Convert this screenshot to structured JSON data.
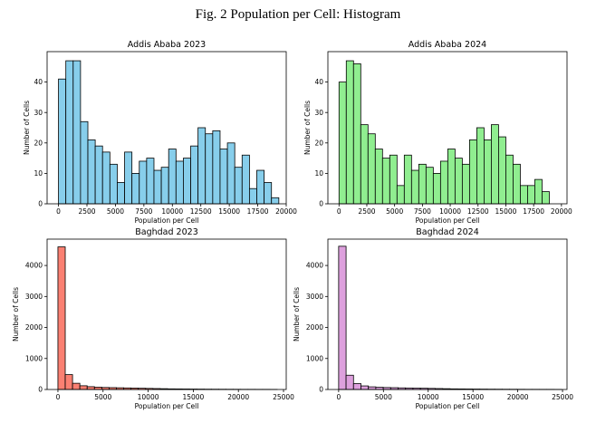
{
  "figure": {
    "title": "Fig. 2 Population per Cell: Histogram"
  },
  "chart_data": [
    {
      "type": "bar",
      "title": "Addis Ababa 2023",
      "xlabel": "Population per Cell",
      "ylabel": "Number of Cells",
      "color": "#87ceeb",
      "xlim": [
        -1000,
        20000
      ],
      "ylim": [
        0,
        50
      ],
      "xticks": [
        0,
        2500,
        5000,
        7500,
        10000,
        12500,
        15000,
        17500,
        20000
      ],
      "yticks": [
        0,
        10,
        20,
        30,
        40
      ],
      "bin_start": 0,
      "bin_width": 645,
      "values": [
        41,
        47,
        47,
        27,
        21,
        19,
        17,
        13,
        7,
        17,
        10,
        14,
        15,
        11,
        12,
        18,
        14,
        15,
        19,
        25,
        23,
        24,
        18,
        20,
        12,
        16,
        5,
        11,
        7,
        2
      ],
      "grid": false
    },
    {
      "type": "bar",
      "title": "Addis Ababa 2024",
      "xlabel": "Population per Cell",
      "ylabel": "Number of Cells",
      "color": "#90ee90",
      "xlim": [
        -1000,
        20500
      ],
      "ylim": [
        0,
        50
      ],
      "xticks": [
        0,
        2500,
        5000,
        7500,
        10000,
        12500,
        15000,
        17500,
        20000
      ],
      "yticks": [
        0,
        10,
        20,
        30,
        40
      ],
      "bin_start": 0,
      "bin_width": 652,
      "values": [
        40,
        47,
        46,
        26,
        23,
        18,
        15,
        16,
        6,
        16,
        11,
        13,
        12,
        10,
        14,
        18,
        15,
        13,
        21,
        25,
        21,
        26,
        22,
        16,
        13,
        6,
        6,
        8,
        4
      ],
      "grid": false
    },
    {
      "type": "bar",
      "title": "Baghdad 2023",
      "xlabel": "Population per Cell",
      "ylabel": "Number of Cells",
      "color": "#fa8072",
      "xlim": [
        -1200,
        25300
      ],
      "ylim": [
        0,
        4850
      ],
      "xticks": [
        0,
        5000,
        10000,
        15000,
        20000,
        25000
      ],
      "yticks": [
        0,
        1000,
        2000,
        3000,
        4000
      ],
      "bin_start": 0,
      "bin_width": 810,
      "values": [
        4600,
        480,
        200,
        120,
        90,
        75,
        65,
        60,
        55,
        50,
        45,
        40,
        35,
        30,
        25,
        20,
        18,
        16,
        14,
        12,
        10,
        9,
        8,
        7,
        6,
        5,
        5,
        4,
        4,
        3
      ],
      "grid": false
    },
    {
      "type": "bar",
      "title": "Baghdad 2024",
      "xlabel": "Population per Cell",
      "ylabel": "Number of Cells",
      "color": "#dda0dd",
      "xlim": [
        -1200,
        25500
      ],
      "ylim": [
        0,
        4850
      ],
      "xticks": [
        0,
        5000,
        10000,
        15000,
        20000,
        25000
      ],
      "yticks": [
        0,
        1000,
        2000,
        3000,
        4000
      ],
      "bin_start": 0,
      "bin_width": 830,
      "values": [
        4620,
        460,
        190,
        115,
        85,
        72,
        63,
        58,
        52,
        48,
        44,
        40,
        35,
        30,
        25,
        20,
        18,
        16,
        14,
        12,
        10,
        9,
        8,
        7,
        6,
        5,
        5,
        4,
        4,
        3
      ],
      "grid": false
    }
  ]
}
